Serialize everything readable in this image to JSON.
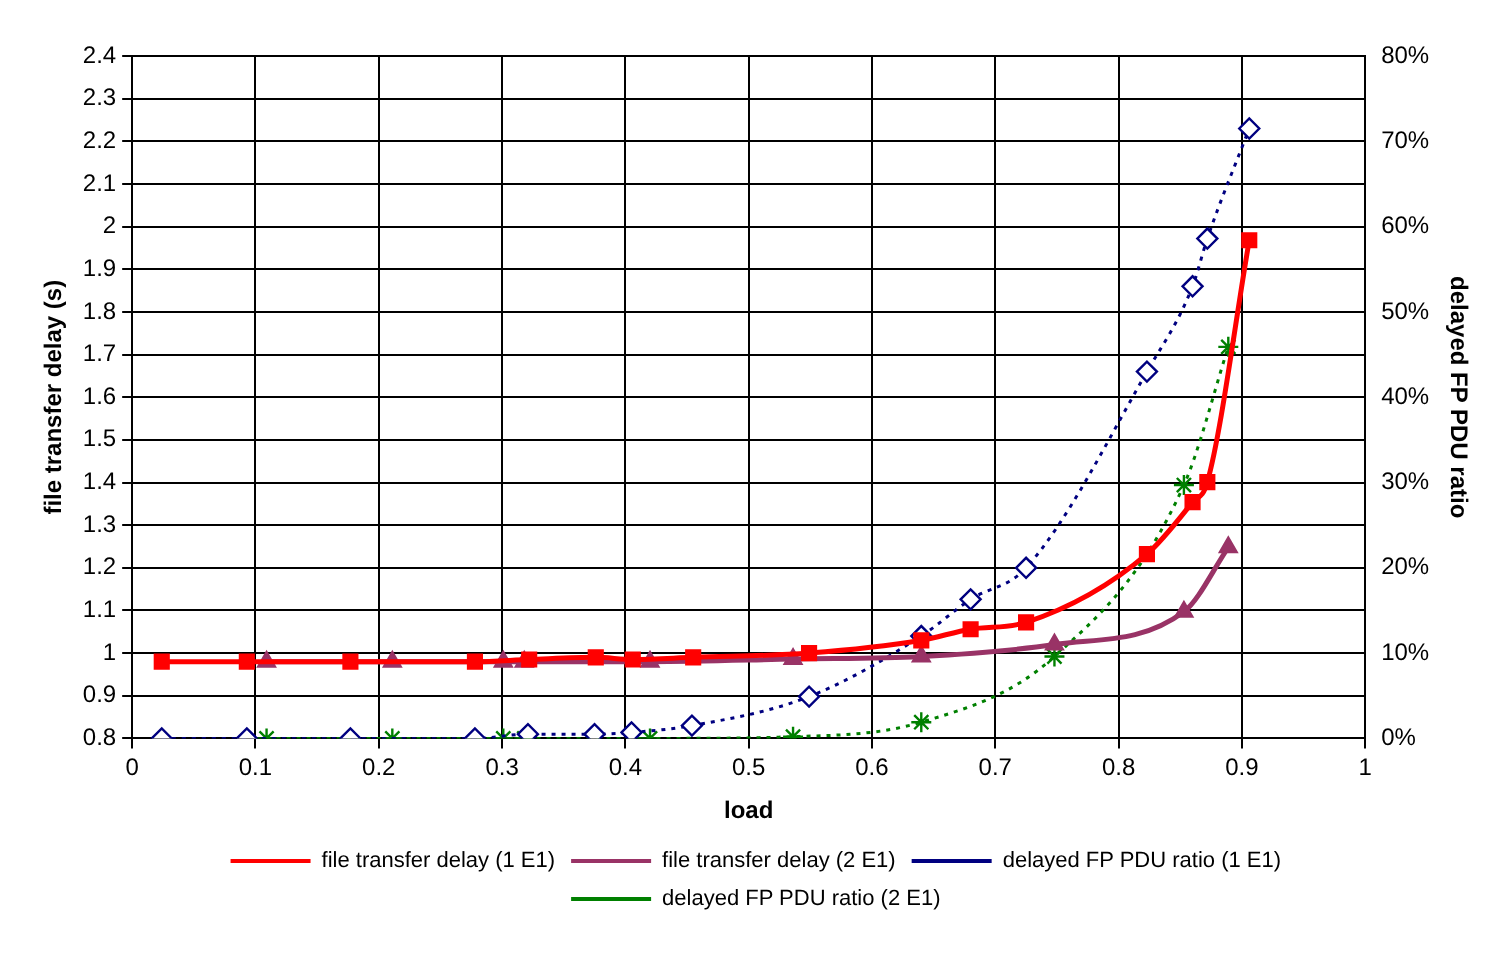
{
  "chart_data": {
    "type": "line",
    "xlabel": "load",
    "ylabel": "file transfer delay (s)",
    "y2label": "delayed FP PDU ratio",
    "xlim": [
      0,
      1
    ],
    "xticks": [
      0,
      0.1,
      0.2,
      0.3,
      0.4,
      0.5,
      0.6,
      0.7,
      0.8,
      0.9,
      1
    ],
    "ylim": [
      0.8,
      2.4
    ],
    "yticks": [
      0.8,
      0.9,
      1,
      1.1,
      1.2,
      1.3,
      1.4,
      1.5,
      1.6,
      1.7,
      1.8,
      1.9,
      2,
      2.1,
      2.2,
      2.3,
      2.4
    ],
    "y2lim": [
      0,
      80
    ],
    "y2ticks": [
      {
        "value": 0,
        "label": "0%"
      },
      {
        "value": 10,
        "label": "10%"
      },
      {
        "value": 20,
        "label": "20%"
      },
      {
        "value": 30,
        "label": "30%"
      },
      {
        "value": 40,
        "label": "40%"
      },
      {
        "value": 50,
        "label": "50%"
      },
      {
        "value": 60,
        "label": "60%"
      },
      {
        "value": 70,
        "label": "70%"
      },
      {
        "value": 80,
        "label": "80%"
      }
    ],
    "grid": true,
    "legend": "bottom",
    "series": [
      {
        "name": "file transfer delay (1 E1)",
        "color": "#ff0000",
        "marker": "square",
        "line_style": "solid",
        "x": [
          0.024,
          0.093,
          0.177,
          0.278,
          0.322,
          0.376,
          0.406,
          0.455,
          0.549,
          0.64,
          0.68,
          0.725,
          0.823,
          0.86,
          0.872,
          0.906
        ],
        "values": [
          0.98,
          0.98,
          0.98,
          0.98,
          0.985,
          0.99,
          0.985,
          0.99,
          1.0,
          1.03,
          1.056,
          1.072,
          1.232,
          1.354,
          1.401,
          1.968
        ]
      },
      {
        "name": "file transfer delay (2 E1)",
        "color": "#993366",
        "marker": "triangle",
        "line_style": "solid",
        "x": [
          0.109,
          0.211,
          0.301,
          0.318,
          0.42,
          0.536,
          0.64,
          0.748,
          0.853,
          0.889
        ],
        "values": [
          0.98,
          0.98,
          0.98,
          0.98,
          0.98,
          0.986,
          0.992,
          1.02,
          1.097,
          1.248
        ]
      },
      {
        "name": "delayed FP PDU ratio (1 E1)",
        "color": "#000080",
        "marker": "diamond",
        "line_style": "dotted",
        "axis": "y2",
        "x": [
          0.024,
          0.093,
          0.177,
          0.278,
          0.321,
          0.375,
          0.405,
          0.454,
          0.549,
          0.64,
          0.68,
          0.725,
          0.823,
          0.86,
          0.872,
          0.906
        ],
        "values": [
          0,
          0,
          0,
          0,
          0.5,
          0.5,
          0.7,
          1.5,
          4.9,
          12,
          16.3,
          20,
          43,
          53,
          58.6,
          71.5
        ]
      },
      {
        "name": "delayed FP PDU ratio (2 E1)",
        "color": "#008000",
        "marker": "cross",
        "line_style": "dotted",
        "axis": "y2",
        "x": [
          0.109,
          0.211,
          0.301,
          0.318,
          0.42,
          0.536,
          0.64,
          0.748,
          0.853,
          0.889
        ],
        "values": [
          0,
          0,
          0,
          0,
          0,
          0.2,
          1.9,
          9.6,
          29.7,
          45.9
        ]
      }
    ]
  }
}
